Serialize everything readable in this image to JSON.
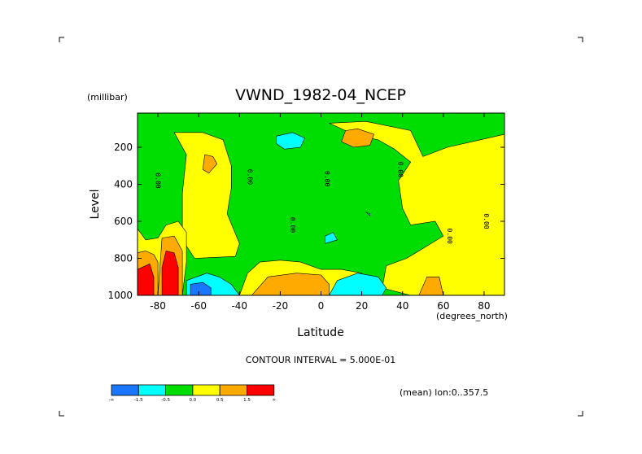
{
  "chart_data": {
    "type": "heatmap",
    "title": "VWND_1982-04_NCEP",
    "xlabel": "Latitude",
    "x_units": "(degrees_north)",
    "ylabel": "Level",
    "y_units": "(millibar)",
    "xlim": [
      -90,
      90
    ],
    "ylim": [
      1000,
      50
    ],
    "y_inverted": true,
    "x_ticks": [
      {
        "value": -80,
        "label": "-80"
      },
      {
        "value": -60,
        "label": "-60"
      },
      {
        "value": -40,
        "label": "-40"
      },
      {
        "value": -20,
        "label": "-20"
      },
      {
        "value": 0,
        "label": "0"
      },
      {
        "value": 20,
        "label": "20"
      },
      {
        "value": 40,
        "label": "40"
      },
      {
        "value": 60,
        "label": "60"
      },
      {
        "value": 80,
        "label": "80"
      }
    ],
    "y_ticks": [
      {
        "value": 200,
        "label": "200"
      },
      {
        "value": 400,
        "label": "400"
      },
      {
        "value": 600,
        "label": "600"
      },
      {
        "value": 800,
        "label": "800"
      },
      {
        "value": 1000,
        "label": "1000"
      }
    ],
    "contour_interval_text": "CONTOUR INTERVAL = 5.000E-01",
    "mean_text": "(mean) lon:0..357.5",
    "colorbar": {
      "colors": [
        "#1a75ff",
        "#00ffff",
        "#00dd00",
        "#ffff00",
        "#ffaa00",
        "#ff0000"
      ],
      "labels": [
        "-∞",
        "-1.5",
        "-0.5",
        "0.0",
        "0.5",
        "1.5",
        "∞"
      ]
    },
    "regions": [
      {
        "level": "green",
        "color": "#00dd00",
        "lat_lon_box": [
          -90,
          90,
          50,
          1000
        ]
      },
      {
        "level": "yellow",
        "color": "#ffff00",
        "polygon": [
          [
            -72,
            120
          ],
          [
            -66,
            240
          ],
          [
            -68,
            450
          ],
          [
            -68,
            700
          ],
          [
            -62,
            800
          ],
          [
            -42,
            790
          ],
          [
            -40,
            720
          ],
          [
            -46,
            560
          ],
          [
            -44,
            420
          ],
          [
            -44,
            300
          ],
          [
            -48,
            160
          ],
          [
            -58,
            120
          ]
        ]
      },
      {
        "level": "yellow",
        "color": "#ffff00",
        "polygon": [
          [
            4,
            70
          ],
          [
            16,
            130
          ],
          [
            28,
            160
          ],
          [
            36,
            210
          ],
          [
            44,
            280
          ],
          [
            38,
            380
          ],
          [
            40,
            530
          ],
          [
            44,
            620
          ],
          [
            56,
            600
          ],
          [
            60,
            680
          ],
          [
            54,
            720
          ],
          [
            42,
            800
          ],
          [
            32,
            840
          ],
          [
            30,
            960
          ],
          [
            44,
            1000
          ],
          [
            90,
            1000
          ],
          [
            90,
            130
          ],
          [
            78,
            160
          ],
          [
            62,
            200
          ],
          [
            50,
            250
          ],
          [
            44,
            110
          ],
          [
            22,
            60
          ]
        ]
      },
      {
        "level": "yellow",
        "color": "#ffff00",
        "polygon": [
          [
            -30,
            820
          ],
          [
            -36,
            880
          ],
          [
            -40,
            1000
          ],
          [
            22,
            1000
          ],
          [
            20,
            880
          ],
          [
            10,
            860
          ],
          [
            0,
            860
          ],
          [
            -10,
            820
          ],
          [
            -20,
            810
          ]
        ]
      },
      {
        "level": "yellow",
        "color": "#ffff00",
        "polygon": [
          [
            -90,
            640
          ],
          [
            -86,
            700
          ],
          [
            -80,
            690
          ],
          [
            -76,
            620
          ],
          [
            -70,
            600
          ],
          [
            -66,
            660
          ],
          [
            -66,
            820
          ],
          [
            -68,
            1000
          ],
          [
            -90,
            1000
          ]
        ]
      },
      {
        "level": "orange",
        "color": "#ffaa00",
        "polygon": [
          [
            -57,
            240
          ],
          [
            -53,
            250
          ],
          [
            -51,
            290
          ],
          [
            -55,
            340
          ],
          [
            -58,
            320
          ]
        ]
      },
      {
        "level": "orange",
        "color": "#ffaa00",
        "polygon": [
          [
            12,
            110
          ],
          [
            18,
            100
          ],
          [
            26,
            130
          ],
          [
            24,
            190
          ],
          [
            16,
            200
          ],
          [
            10,
            170
          ]
        ]
      },
      {
        "level": "orange",
        "color": "#ffaa00",
        "polygon": [
          [
            -26,
            900
          ],
          [
            -12,
            880
          ],
          [
            0,
            890
          ],
          [
            4,
            940
          ],
          [
            4,
            1000
          ],
          [
            -34,
            1000
          ]
        ]
      },
      {
        "level": "orange",
        "color": "#ffaa00",
        "polygon": [
          [
            52,
            900
          ],
          [
            58,
            900
          ],
          [
            60,
            1000
          ],
          [
            48,
            1000
          ]
        ]
      },
      {
        "level": "orange",
        "color": "#ffaa00",
        "polygon": [
          [
            -90,
            770
          ],
          [
            -86,
            760
          ],
          [
            -82,
            780
          ],
          [
            -80,
            820
          ],
          [
            -80,
            1000
          ],
          [
            -90,
            1000
          ]
        ]
      },
      {
        "level": "orange",
        "color": "#ffaa00",
        "polygon": [
          [
            -78,
            690
          ],
          [
            -72,
            680
          ],
          [
            -68,
            760
          ],
          [
            -68,
            1000
          ],
          [
            -80,
            1000
          ]
        ]
      },
      {
        "level": "red",
        "color": "#ff0000",
        "polygon": [
          [
            -90,
            860
          ],
          [
            -84,
            830
          ],
          [
            -82,
            900
          ],
          [
            -82,
            1000
          ],
          [
            -90,
            1000
          ]
        ]
      },
      {
        "level": "red",
        "color": "#ff0000",
        "polygon": [
          [
            -76,
            760
          ],
          [
            -72,
            770
          ],
          [
            -70,
            850
          ],
          [
            -70,
            1000
          ],
          [
            -78,
            1000
          ],
          [
            -78,
            850
          ]
        ]
      },
      {
        "level": "cyan",
        "color": "#00ffff",
        "polygon": [
          [
            -22,
            140
          ],
          [
            -14,
            120
          ],
          [
            -8,
            150
          ],
          [
            -10,
            200
          ],
          [
            -18,
            210
          ],
          [
            -22,
            180
          ]
        ]
      },
      {
        "level": "cyan",
        "color": "#00ffff",
        "polygon": [
          [
            -66,
            920
          ],
          [
            -56,
            880
          ],
          [
            -50,
            900
          ],
          [
            -44,
            940
          ],
          [
            -40,
            1000
          ],
          [
            -66,
            1000
          ]
        ]
      },
      {
        "level": "cyan",
        "color": "#00ffff",
        "polygon": [
          [
            8,
            920
          ],
          [
            18,
            880
          ],
          [
            28,
            900
          ],
          [
            32,
            960
          ],
          [
            30,
            1000
          ],
          [
            4,
            1000
          ]
        ]
      },
      {
        "level": "cyan",
        "color": "#00ffff",
        "polygon": [
          [
            2,
            680
          ],
          [
            6,
            660
          ],
          [
            8,
            700
          ],
          [
            2,
            720
          ]
        ]
      },
      {
        "level": "cyan",
        "color": "#00ffff",
        "polygon": [
          [
            22,
            550
          ],
          [
            24,
            560
          ],
          [
            24,
            570
          ]
        ]
      },
      {
        "level": "blue",
        "color": "#1a75ff",
        "polygon": [
          [
            -64,
            940
          ],
          [
            -58,
            930
          ],
          [
            -54,
            960
          ],
          [
            -54,
            1000
          ],
          [
            -64,
            1000
          ]
        ]
      }
    ],
    "zero_labels": [
      {
        "text": "0.00",
        "lat": -81,
        "lev": 380
      },
      {
        "text": "0.00",
        "lat": -36,
        "lev": 360
      },
      {
        "text": "0.00",
        "lat": 2,
        "lev": 370
      },
      {
        "text": "0.00",
        "lat": 38,
        "lev": 320
      },
      {
        "text": "0.00",
        "lat": -15,
        "lev": 620
      },
      {
        "text": "0.00",
        "lat": 62,
        "lev": 680
      },
      {
        "text": "0.00",
        "lat": 80,
        "lev": 600
      }
    ]
  }
}
